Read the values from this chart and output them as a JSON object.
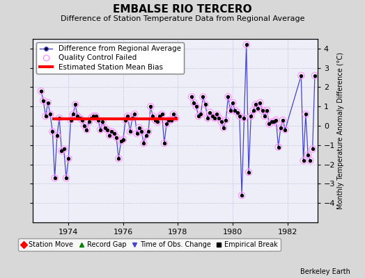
{
  "title": "EMBALSE RIO TERCERO",
  "subtitle": "Difference of Station Temperature Data from Regional Average",
  "ylabel": "Monthly Temperature Anomaly Difference (°C)",
  "xlabel_bottom": "Berkeley Earth",
  "background_color": "#d8d8d8",
  "plot_bg_color": "#eeeef8",
  "ylim": [
    -5,
    4.5
  ],
  "yticks": [
    -4,
    -3,
    -2,
    -1,
    0,
    1,
    2,
    3,
    4
  ],
  "bias_y": 0.35,
  "bias_x_start": 1973.42,
  "bias_x_end": 1978.0,
  "line_color": "#4444cc",
  "dot_color": "#000000",
  "qc_color": "#ff99ff",
  "bias_color": "#ff0000",
  "title_fontsize": 11,
  "subtitle_fontsize": 8,
  "legend_fontsize": 7.5,
  "tick_fontsize": 8,
  "xticks": [
    1974,
    1976,
    1978,
    1980,
    1982
  ],
  "xlim": [
    1972.7,
    1983.1
  ],
  "x_values": [
    1973.0,
    1973.083,
    1973.167,
    1973.25,
    1973.333,
    1973.417,
    1973.5,
    1973.583,
    1973.667,
    1973.75,
    1973.833,
    1973.917,
    1974.0,
    1974.083,
    1974.167,
    1974.25,
    1974.333,
    1974.417,
    1974.5,
    1974.583,
    1974.667,
    1974.75,
    1974.833,
    1974.917,
    1975.0,
    1975.083,
    1975.167,
    1975.25,
    1975.333,
    1975.417,
    1975.5,
    1975.583,
    1975.667,
    1975.75,
    1975.833,
    1975.917,
    1976.0,
    1976.083,
    1976.167,
    1976.25,
    1976.333,
    1976.417,
    1976.5,
    1976.583,
    1976.667,
    1976.75,
    1976.833,
    1976.917,
    1977.0,
    1977.083,
    1977.167,
    1977.25,
    1977.333,
    1977.417,
    1977.5,
    1977.583,
    1977.667,
    1977.75,
    1977.833,
    1977.917,
    1978.5,
    1978.583,
    1978.667,
    1978.75,
    1978.833,
    1978.917,
    1979.0,
    1979.083,
    1979.167,
    1979.25,
    1979.333,
    1979.417,
    1979.5,
    1979.583,
    1979.667,
    1979.75,
    1979.833,
    1979.917,
    1980.0,
    1980.083,
    1980.167,
    1980.25,
    1980.333,
    1980.417,
    1980.5,
    1980.583,
    1980.667,
    1980.75,
    1980.833,
    1980.917,
    1981.0,
    1981.083,
    1981.167,
    1981.25,
    1981.333,
    1981.417,
    1981.5,
    1981.583,
    1981.667,
    1981.75,
    1981.833,
    1981.917,
    1982.5,
    1982.583,
    1982.667,
    1982.75,
    1982.833,
    1982.917,
    1983.0
  ],
  "y_values": [
    1.8,
    1.3,
    0.5,
    1.2,
    0.6,
    -0.3,
    -2.7,
    -0.5,
    0.4,
    -1.3,
    -1.2,
    -2.7,
    -1.7,
    0.3,
    0.6,
    1.1,
    0.5,
    0.4,
    0.3,
    0.0,
    -0.2,
    0.2,
    0.4,
    0.5,
    0.5,
    0.3,
    -0.2,
    0.2,
    -0.1,
    -0.2,
    -0.5,
    -0.3,
    -0.4,
    -0.6,
    -1.7,
    -0.8,
    -0.7,
    0.3,
    0.5,
    -0.3,
    0.4,
    0.6,
    -0.4,
    -0.1,
    -0.3,
    -0.9,
    -0.5,
    -0.3,
    1.0,
    0.5,
    0.3,
    0.2,
    0.5,
    0.6,
    -0.9,
    0.1,
    0.3,
    0.3,
    0.6,
    0.4,
    1.5,
    1.2,
    1.0,
    0.5,
    0.6,
    1.5,
    1.1,
    0.4,
    0.7,
    0.5,
    0.4,
    0.6,
    0.4,
    0.2,
    -0.1,
    0.3,
    1.5,
    0.8,
    1.2,
    0.8,
    0.7,
    0.5,
    -3.6,
    0.4,
    4.2,
    -2.4,
    0.5,
    0.8,
    1.1,
    0.9,
    1.2,
    0.8,
    0.5,
    0.8,
    0.1,
    0.2,
    0.2,
    0.3,
    -1.1,
    -0.1,
    0.3,
    -0.2,
    2.6,
    -1.8,
    0.6,
    -1.5,
    -1.8,
    -1.2,
    2.6
  ],
  "gap1_start": 1973.917,
  "gap1_end": 1974.0,
  "gap2_start": 1977.917,
  "gap2_end": 1978.5,
  "gap3_start": 1981.917,
  "gap3_end": 1982.5,
  "seg_breaks": [
    60,
    107
  ],
  "qc_all": true
}
